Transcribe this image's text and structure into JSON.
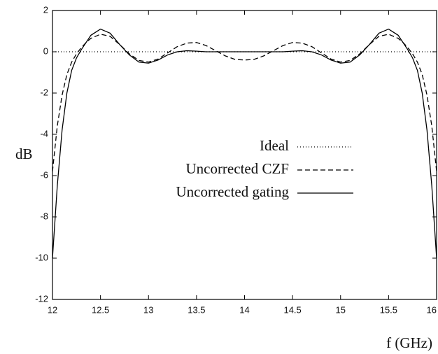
{
  "chart_data": {
    "type": "line",
    "xlabel": "f (GHz)",
    "ylabel": "dB",
    "x": [
      12,
      12.05,
      12.1,
      12.15,
      12.2,
      12.25,
      12.3,
      12.35,
      12.4,
      12.5,
      12.6,
      12.7,
      12.8,
      12.9,
      13,
      13.1,
      13.2,
      13.3,
      13.4,
      13.5,
      13.6,
      13.7,
      13.8,
      13.9,
      14,
      14.1,
      14.2,
      14.3,
      14.4,
      14.5,
      14.6,
      14.7,
      14.8,
      14.9,
      15,
      15.1,
      15.2,
      15.3,
      15.4,
      15.5,
      15.6,
      15.65,
      15.7,
      15.75,
      15.8,
      15.85,
      15.9,
      15.95,
      16
    ],
    "series": [
      {
        "name": "Ideal",
        "color": "#000000",
        "dash": "1,3",
        "values": [
          0,
          0,
          0,
          0,
          0,
          0,
          0,
          0,
          0,
          0,
          0,
          0,
          0,
          0,
          0,
          0,
          0,
          0,
          0,
          0,
          0,
          0,
          0,
          0,
          0,
          0,
          0,
          0,
          0,
          0,
          0,
          0,
          0,
          0,
          0,
          0,
          0,
          0,
          0,
          0,
          0,
          0,
          0,
          0,
          0,
          0,
          0,
          0,
          0
        ]
      },
      {
        "name": "Uncorrected CZF",
        "color": "#000000",
        "dash": "7,4",
        "values": [
          -5.8,
          -3.6,
          -2.1,
          -1.1,
          -0.5,
          -0.1,
          0.2,
          0.45,
          0.65,
          0.85,
          0.75,
          0.35,
          -0.1,
          -0.42,
          -0.5,
          -0.35,
          -0.05,
          0.25,
          0.42,
          0.45,
          0.3,
          0.05,
          -0.2,
          -0.37,
          -0.4,
          -0.37,
          -0.2,
          0.05,
          0.3,
          0.45,
          0.42,
          0.25,
          -0.05,
          -0.35,
          -0.5,
          -0.42,
          -0.1,
          0.35,
          0.75,
          0.85,
          0.65,
          0.45,
          0.2,
          -0.1,
          -0.5,
          -1.1,
          -2.1,
          -3.6,
          -5.8
        ]
      },
      {
        "name": "Uncorrected gating",
        "color": "#000000",
        "dash": null,
        "values": [
          -10,
          -6.5,
          -3.8,
          -2.0,
          -0.9,
          -0.3,
          0.1,
          0.45,
          0.8,
          1.1,
          0.9,
          0.35,
          -0.15,
          -0.5,
          -0.55,
          -0.4,
          -0.15,
          0,
          0.05,
          0.03,
          0,
          0,
          0,
          0,
          0,
          0,
          0,
          0,
          0,
          0.03,
          0.05,
          0,
          -0.15,
          -0.4,
          -0.55,
          -0.5,
          -0.15,
          0.35,
          0.9,
          1.1,
          0.8,
          0.45,
          0.1,
          -0.3,
          -0.9,
          -2.0,
          -3.8,
          -6.5,
          -10
        ]
      }
    ],
    "xlim": [
      12,
      16
    ],
    "xticks": [
      12,
      12.5,
      13,
      13.5,
      14,
      14.5,
      15,
      15.5,
      16
    ],
    "ylim": [
      -12,
      2
    ],
    "yticks": [
      2,
      0,
      -2,
      -4,
      -6,
      -8,
      -10,
      -12
    ],
    "legend": "center-right"
  }
}
